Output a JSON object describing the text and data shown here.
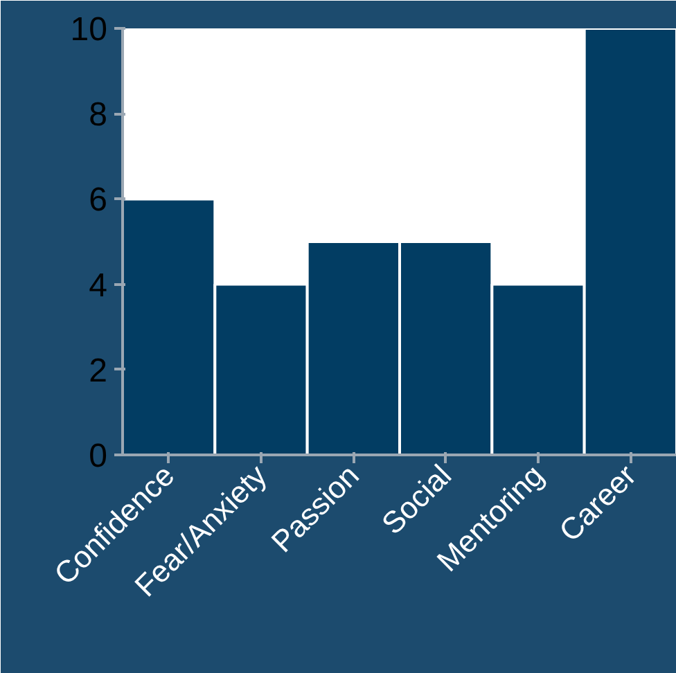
{
  "chart_data": {
    "type": "bar",
    "categories": [
      "Confidence",
      "Fear/Anxiety",
      "Passion",
      "Social",
      "Mentoring",
      "Career"
    ],
    "values": [
      6,
      4,
      5,
      5,
      4,
      10
    ],
    "color": "#023d63",
    "ylim": [
      0,
      10
    ],
    "yticks": [
      0,
      2,
      4,
      6,
      8,
      10
    ],
    "grid": false
  }
}
